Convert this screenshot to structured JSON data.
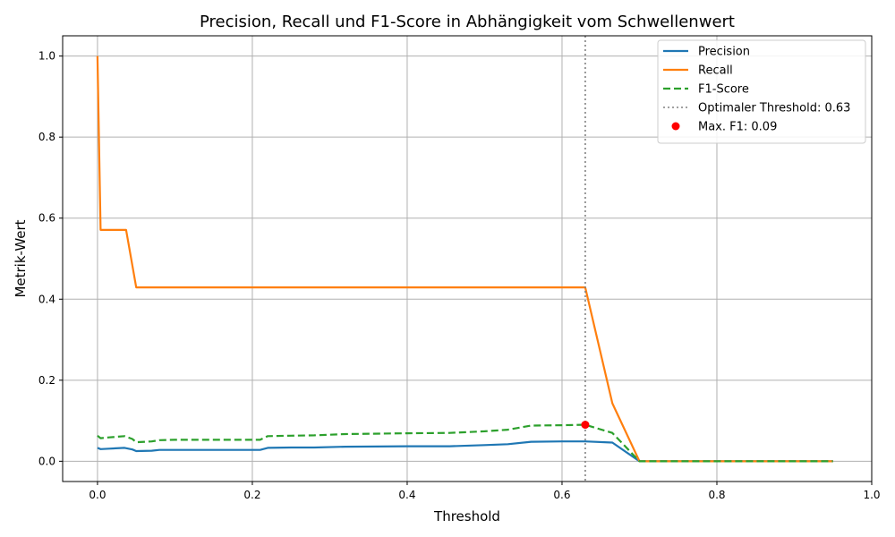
{
  "chart_data": {
    "type": "line",
    "title": "Precision, Recall und F1-Score in Abhängigkeit vom Schwellenwert",
    "xlabel": "Threshold",
    "ylabel": "Metrik-Wert",
    "xlim": [
      -0.045,
      1.0
    ],
    "ylim": [
      -0.05,
      1.05
    ],
    "xticks": [
      "0.0",
      "0.2",
      "0.4",
      "0.6",
      "0.8",
      "1.0"
    ],
    "yticks": [
      "0.0",
      "0.2",
      "0.4",
      "0.6",
      "0.8",
      "1.0"
    ],
    "grid": true,
    "legend_position": "top-right",
    "series": [
      {
        "name": "Precision",
        "color": "#1f77b4",
        "style": "solid",
        "points": [
          [
            0.0,
            0.033
          ],
          [
            0.004,
            0.03
          ],
          [
            0.015,
            0.031
          ],
          [
            0.035,
            0.033
          ],
          [
            0.045,
            0.029
          ],
          [
            0.05,
            0.025
          ],
          [
            0.07,
            0.026
          ],
          [
            0.08,
            0.028
          ],
          [
            0.1,
            0.028
          ],
          [
            0.15,
            0.028
          ],
          [
            0.21,
            0.028
          ],
          [
            0.22,
            0.033
          ],
          [
            0.25,
            0.034
          ],
          [
            0.28,
            0.034
          ],
          [
            0.32,
            0.036
          ],
          [
            0.4,
            0.037
          ],
          [
            0.455,
            0.037
          ],
          [
            0.5,
            0.04
          ],
          [
            0.53,
            0.042
          ],
          [
            0.56,
            0.048
          ],
          [
            0.6,
            0.049
          ],
          [
            0.63,
            0.049
          ],
          [
            0.665,
            0.046
          ],
          [
            0.7,
            0.0
          ],
          [
            0.95,
            0.0
          ]
        ]
      },
      {
        "name": "Recall",
        "color": "#ff7f0e",
        "style": "solid",
        "points": [
          [
            0.0,
            1.0
          ],
          [
            0.004,
            0.571
          ],
          [
            0.037,
            0.571
          ],
          [
            0.05,
            0.429
          ],
          [
            0.63,
            0.429
          ],
          [
            0.665,
            0.143
          ],
          [
            0.7,
            0.0
          ],
          [
            0.95,
            0.0
          ]
        ]
      },
      {
        "name": "F1-Score",
        "color": "#2ca02c",
        "style": "dashed",
        "points": [
          [
            0.0,
            0.063
          ],
          [
            0.004,
            0.057
          ],
          [
            0.015,
            0.059
          ],
          [
            0.035,
            0.062
          ],
          [
            0.045,
            0.055
          ],
          [
            0.05,
            0.047
          ],
          [
            0.07,
            0.049
          ],
          [
            0.08,
            0.052
          ],
          [
            0.1,
            0.053
          ],
          [
            0.15,
            0.053
          ],
          [
            0.21,
            0.053
          ],
          [
            0.22,
            0.062
          ],
          [
            0.25,
            0.063
          ],
          [
            0.28,
            0.064
          ],
          [
            0.32,
            0.067
          ],
          [
            0.4,
            0.069
          ],
          [
            0.455,
            0.07
          ],
          [
            0.5,
            0.074
          ],
          [
            0.53,
            0.078
          ],
          [
            0.56,
            0.088
          ],
          [
            0.6,
            0.089
          ],
          [
            0.63,
            0.09
          ],
          [
            0.665,
            0.07
          ],
          [
            0.7,
            0.0
          ],
          [
            0.95,
            0.0
          ]
        ]
      }
    ],
    "threshold_line": {
      "label": "Optimaler Threshold: 0.63",
      "x": 0.63,
      "color": "#808080",
      "style": "dotted"
    },
    "max_point": {
      "label": "Max. F1: 0.09",
      "x": 0.63,
      "y": 0.09,
      "color": "#ff0000"
    }
  }
}
